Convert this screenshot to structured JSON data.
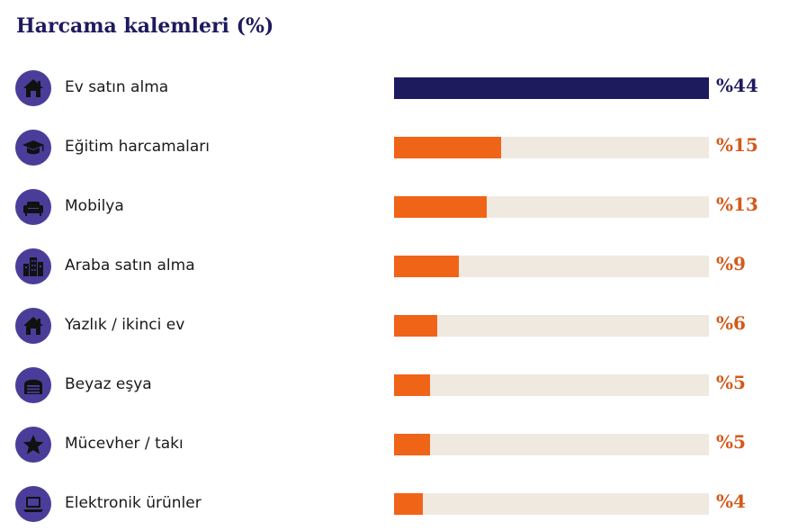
{
  "chart_data": {
    "type": "bar",
    "orientation": "horizontal",
    "title": "Harcama kalemleri (%)",
    "xlim": [
      0,
      44
    ],
    "categories": [
      "Ev satın alma",
      "Eğitim harcamaları",
      "Mobilya",
      "Araba satın alma",
      "Yazlık / ikinci ev",
      "Beyaz eşya",
      "Mücevher / takı",
      "Elektronik ürünler"
    ],
    "values": [
      44,
      15,
      13,
      9,
      6,
      5,
      5,
      4
    ],
    "value_labels": [
      "%44",
      "%15",
      "%13",
      "%9",
      "%6",
      "%5",
      "%5",
      "%4"
    ],
    "icons": [
      "house-icon",
      "graduation-cap-icon",
      "sofa-icon",
      "city-buildings-icon",
      "house-icon",
      "washing-machine-icon",
      "star-icon",
      "laptop-icon"
    ],
    "colors": {
      "highlight_bar": "#1e1a5e",
      "bar": "#f06418",
      "track": "#f0e9e0",
      "icon_background": "#4a3d9a",
      "icon_foreground": "#111111",
      "highlight_value": "#1e1a5e",
      "value": "#d4591a"
    }
  }
}
